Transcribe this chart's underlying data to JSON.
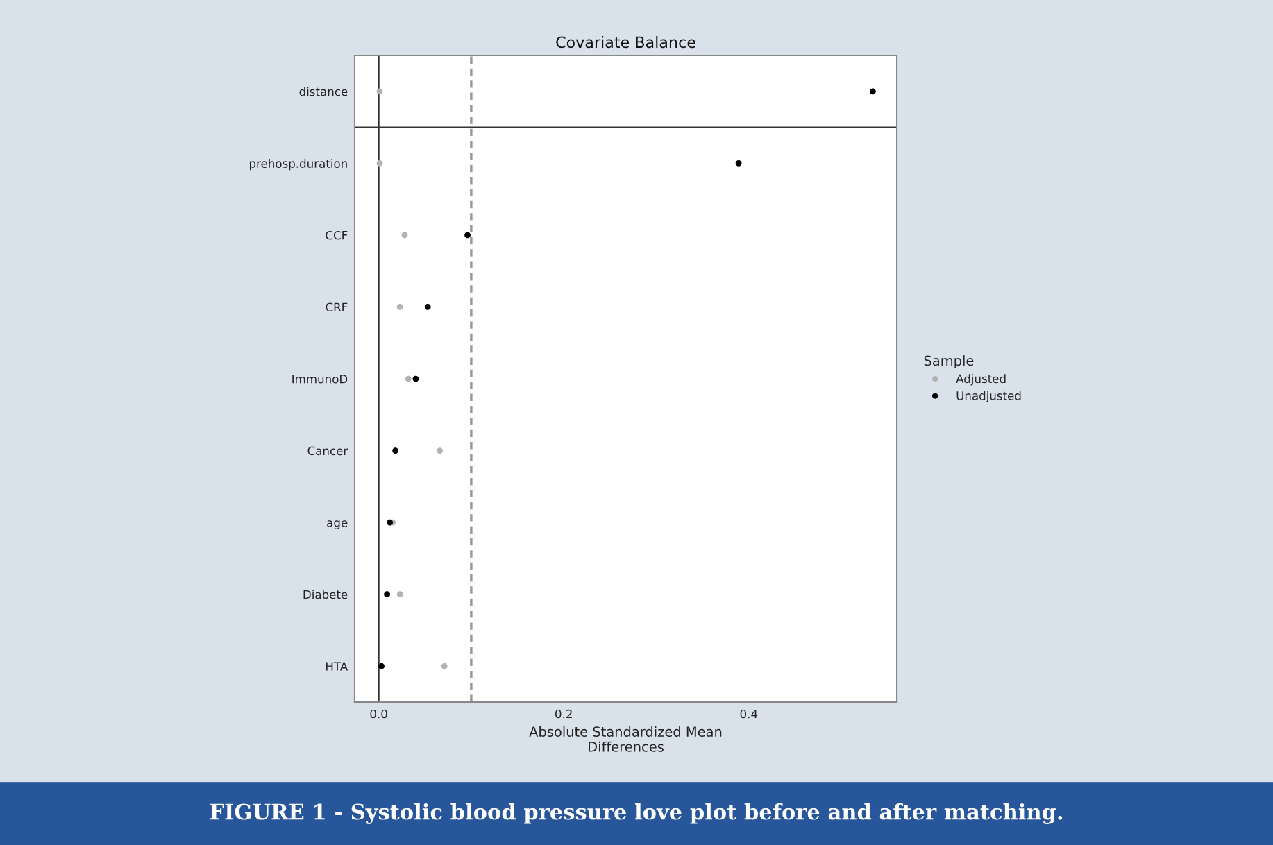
{
  "chart_data": {
    "type": "scatter",
    "orientation": "horizontal",
    "title": "Covariate Balance",
    "xlabel": "Absolute Standardized Mean\nDifferences",
    "legend_title": "Sample",
    "categories": [
      "distance",
      "prehosp.duration",
      "CCF",
      "CRF",
      "ImmunoD",
      "Cancer",
      "age",
      "Diabete",
      "HTA"
    ],
    "series": [
      {
        "name": "Adjusted",
        "color": "#b3b3b3",
        "values": [
          0.001,
          0.001,
          0.028,
          0.023,
          0.032,
          0.066,
          0.015,
          0.023,
          0.071
        ]
      },
      {
        "name": "Unadjusted",
        "color": "#000000",
        "values": [
          0.534,
          0.389,
          0.096,
          0.053,
          0.04,
          0.018,
          0.012,
          0.009,
          0.003
        ]
      }
    ],
    "xlim": [
      -0.026,
      0.56
    ],
    "xticks": [
      {
        "value": 0,
        "label": "0.0"
      },
      0.2,
      0.4
    ],
    "ref_lines": [
      {
        "axis": "x",
        "value": 0,
        "color": "#333333",
        "line_style": "solid"
      },
      {
        "axis": "x",
        "value": 0.1,
        "color": "#999999",
        "line_style": "dashed"
      }
    ],
    "marker": "circle",
    "grid": false,
    "legend": "right",
    "annotations": [
      "FIGURE 1 - Systolic blood pressure love plot before and after matching."
    ]
  }
}
